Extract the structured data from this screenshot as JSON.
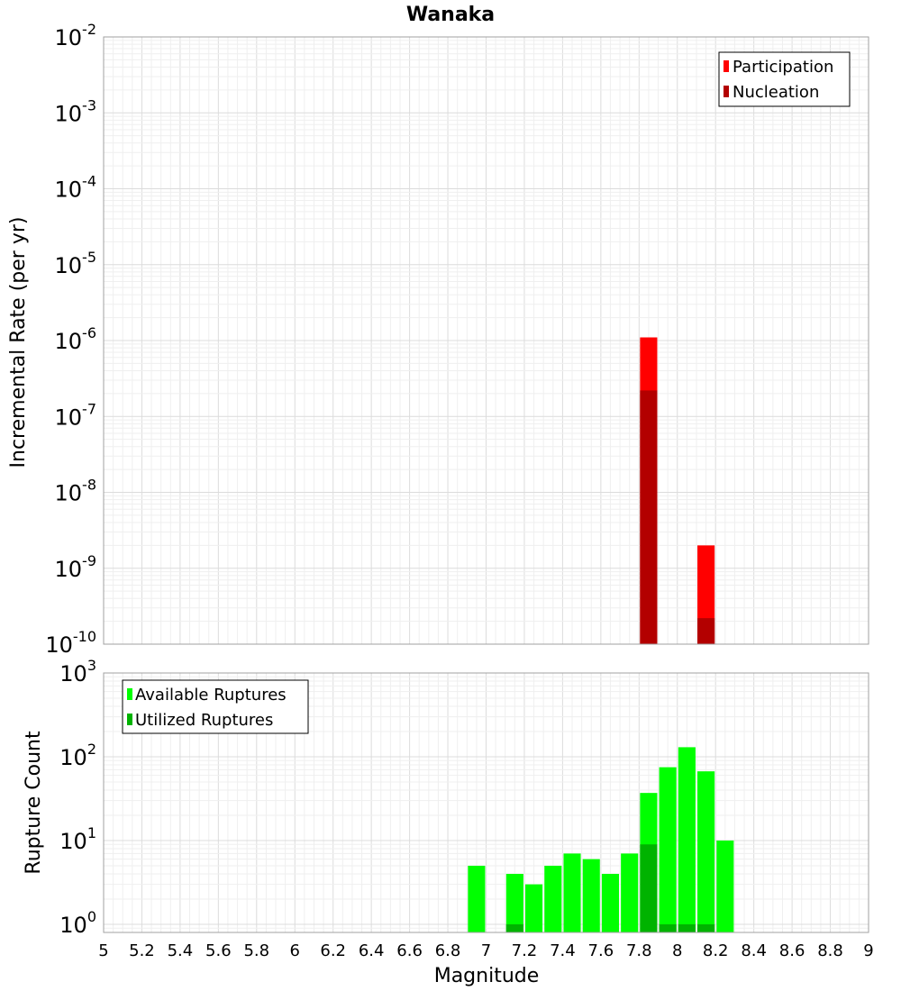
{
  "chart_data": [
    {
      "type": "bar",
      "title": "Wanaka",
      "xlabel": "",
      "ylabel": "Incremental Rate (per yr)",
      "yscale": "log",
      "ylim": [
        1e-10,
        0.01
      ],
      "xlim": [
        5,
        9
      ],
      "yticks": [
        {
          "base": "10",
          "exp": "-10",
          "value": 1e-10
        },
        {
          "base": "10",
          "exp": "-9",
          "value": 1e-09
        },
        {
          "base": "10",
          "exp": "-8",
          "value": 1e-08
        },
        {
          "base": "10",
          "exp": "-7",
          "value": 1e-07
        },
        {
          "base": "10",
          "exp": "-6",
          "value": 1e-06
        },
        {
          "base": "10",
          "exp": "-5",
          "value": 1e-05
        },
        {
          "base": "10",
          "exp": "-4",
          "value": 0.0001
        },
        {
          "base": "10",
          "exp": "-3",
          "value": 0.001
        },
        {
          "base": "10",
          "exp": "-2",
          "value": 0.01
        }
      ],
      "grid": true,
      "legend": "top-right",
      "series": [
        {
          "name": "Participation",
          "color": "#ff0000",
          "points": [
            {
              "x": 7.85,
              "y": 1.1e-06
            },
            {
              "x": 8.15,
              "y": 2e-09
            }
          ]
        },
        {
          "name": "Nucleation",
          "color": "#b30000",
          "points": [
            {
              "x": 7.85,
              "y": 2.2e-07
            },
            {
              "x": 8.15,
              "y": 2.2e-10
            }
          ]
        }
      ]
    },
    {
      "type": "bar",
      "title": "",
      "xlabel": "Magnitude",
      "ylabel": "Rupture Count",
      "yscale": "log",
      "ylim": [
        0.8,
        1000
      ],
      "xlim": [
        5,
        9
      ],
      "xticks": [
        "5",
        "5.2",
        "5.4",
        "5.6",
        "5.8",
        "6",
        "6.2",
        "6.4",
        "6.6",
        "6.8",
        "7",
        "7.2",
        "7.4",
        "7.6",
        "7.8",
        "8",
        "8.2",
        "8.4",
        "8.6",
        "8.8",
        "9"
      ],
      "yticks": [
        {
          "base": "10",
          "exp": "0",
          "value": 1
        },
        {
          "base": "10",
          "exp": "1",
          "value": 10
        },
        {
          "base": "10",
          "exp": "2",
          "value": 100
        },
        {
          "base": "10",
          "exp": "3",
          "value": 1000
        }
      ],
      "grid": true,
      "legend": "top-left",
      "series": [
        {
          "name": "Available Ruptures",
          "color": "#00ff00",
          "points": [
            {
              "x": 6.95,
              "y": 5
            },
            {
              "x": 7.15,
              "y": 4
            },
            {
              "x": 7.25,
              "y": 3
            },
            {
              "x": 7.35,
              "y": 5
            },
            {
              "x": 7.45,
              "y": 7
            },
            {
              "x": 7.55,
              "y": 6
            },
            {
              "x": 7.65,
              "y": 4
            },
            {
              "x": 7.75,
              "y": 7
            },
            {
              "x": 7.85,
              "y": 37
            },
            {
              "x": 7.95,
              "y": 75
            },
            {
              "x": 8.05,
              "y": 130
            },
            {
              "x": 8.15,
              "y": 67
            },
            {
              "x": 8.25,
              "y": 10
            }
          ]
        },
        {
          "name": "Utilized Ruptures",
          "color": "#00b300",
          "points": [
            {
              "x": 7.15,
              "y": 1
            },
            {
              "x": 7.85,
              "y": 9
            },
            {
              "x": 7.95,
              "y": 1
            },
            {
              "x": 8.05,
              "y": 1
            },
            {
              "x": 8.15,
              "y": 1
            }
          ]
        }
      ]
    }
  ]
}
